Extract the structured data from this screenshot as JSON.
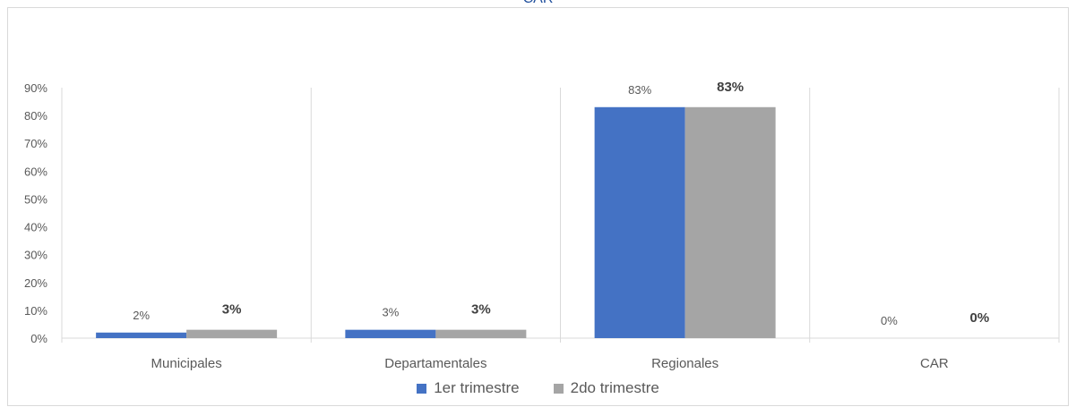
{
  "chart_data": {
    "type": "bar",
    "title": "CAR",
    "categories": [
      "Municipales",
      "Departamentales",
      "Regionales",
      "CAR"
    ],
    "series": [
      {
        "name": "1er trimestre",
        "color": "#4472c4",
        "values": [
          2,
          3,
          83,
          0
        ],
        "labels": [
          "2%",
          "3%",
          "83%",
          "0%"
        ],
        "label_bold": false
      },
      {
        "name": "2do trimestre",
        "color": "#a5a5a5",
        "values": [
          3,
          3,
          83,
          0
        ],
        "labels": [
          "3%",
          "3%",
          "83%",
          "0%"
        ],
        "label_bold": true
      }
    ],
    "ylim": [
      0,
      90
    ],
    "yticks": [
      "0%",
      "10%",
      "20%",
      "30%",
      "40%",
      "50%",
      "60%",
      "70%",
      "80%",
      "90%"
    ],
    "grid": "vertical-category-separators",
    "legend": "bottom"
  }
}
